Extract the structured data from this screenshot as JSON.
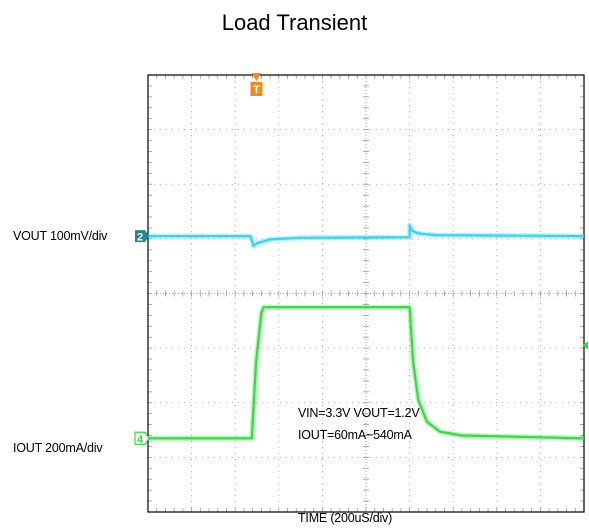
{
  "title": "Load Transient",
  "colors": {
    "background": "#ffffff",
    "frame": "#000000",
    "grid": "#9a9a9a",
    "ch2_vout": "#33d6f5",
    "ch4_iout": "#2ee03a",
    "trigger": "#f28a17",
    "ch2_marker": "#1f8a8f",
    "ch4_marker": "#2ee03a"
  },
  "channels": {
    "ch2": {
      "label": "VOUT  100mV/div",
      "marker": "2"
    },
    "ch4": {
      "label": "IOUT  200mA/div",
      "marker": "4"
    }
  },
  "trigger": {
    "label": "T"
  },
  "annotation": {
    "line1": "VIN=3.3V  VOUT=1.2V",
    "line2": "IOUT=60mA~540mA"
  },
  "chart_data": {
    "type": "line",
    "title": "Load Transient",
    "xlabel": "TIME (200uS/div)",
    "ylabel": "",
    "x_unit": "div",
    "xlim": [
      0,
      10
    ],
    "ylim_div": [
      -4,
      4
    ],
    "grid": true,
    "series": [
      {
        "name": "VOUT",
        "scale": "100mV/div",
        "baseline_div": 1.05,
        "x": [
          0,
          2.35,
          2.42,
          2.5,
          2.8,
          3.5,
          6.0,
          6.0,
          6.05,
          6.2,
          6.6,
          10
        ],
        "y_div": [
          0,
          0,
          -0.18,
          -0.13,
          -0.06,
          -0.03,
          -0.02,
          0.2,
          0.1,
          0.05,
          0.02,
          0
        ]
      },
      {
        "name": "IOUT",
        "scale": "200mA/div",
        "baseline_div": -2.65,
        "x": [
          0,
          2.38,
          2.48,
          2.6,
          2.65,
          6.0,
          6.08,
          6.2,
          6.4,
          6.7,
          7.2,
          10
        ],
        "y_div": [
          0,
          0,
          1.4,
          2.3,
          2.4,
          2.4,
          1.4,
          0.7,
          0.3,
          0.12,
          0.05,
          0
        ]
      }
    ]
  }
}
